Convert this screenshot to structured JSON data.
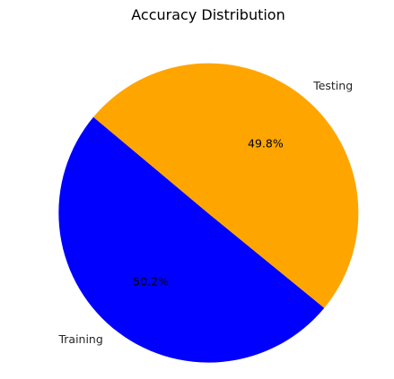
{
  "chart_data": {
    "type": "pie",
    "title": "Accuracy Distribution",
    "slices": [
      {
        "label": "Training",
        "value": 50.2,
        "pct_label": "50.2%",
        "color": "#0000ff"
      },
      {
        "label": "Testing",
        "value": 49.8,
        "pct_label": "49.8%",
        "color": "#ffa500"
      }
    ],
    "start_angle_deg": 140,
    "direction": "counterclockwise"
  }
}
